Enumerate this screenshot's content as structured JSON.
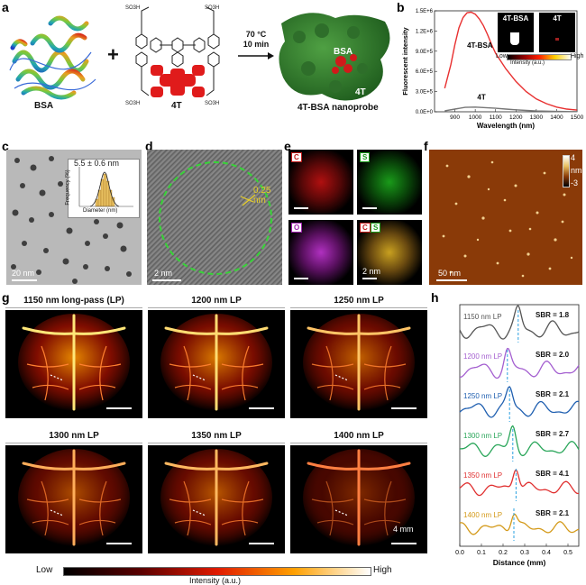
{
  "panels": {
    "a": {
      "label": "a",
      "bsa": "BSA",
      "plus": "+",
      "dye": "4T",
      "condition1": "70 °C",
      "condition2": "10 min",
      "probe": "4T-BSA nanoprobe",
      "probe_bsa": "BSA",
      "probe_4t": "4T",
      "so3h": "SO₃H",
      "colors": {
        "protein_green": "#2f7a2a",
        "dye_red": "#e01b1b"
      }
    },
    "b": {
      "label": "b",
      "ylabel": "Fluorescent intensity",
      "xlabel": "Wavelength (nm)",
      "inset_left": "4T-BSA",
      "inset_right": "4T",
      "colorbar_low": "Low",
      "colorbar_mid": "Intensity (a.u.)",
      "colorbar_high": "High"
    },
    "c": {
      "label": "c",
      "size": "5.5 ± 0.6 nm",
      "hist_x": "Diameter (nm)",
      "hist_y": "Frequency (%)",
      "scale": "20 nm"
    },
    "d": {
      "label": "d",
      "spacing": "0.25 nm",
      "scale": "2 nm"
    },
    "e": {
      "label": "e",
      "c": "C",
      "s": "S",
      "o": "O",
      "cs_c": "C",
      "cs_s": "S",
      "scale": "2 nm"
    },
    "f": {
      "label": "f",
      "scale": "50 nm",
      "cb_top": "4",
      "cb_mid": "nm",
      "cb_bot": "-3"
    },
    "g": {
      "label": "g",
      "titles": [
        "1150 nm long-pass (LP)",
        "1200 nm LP",
        "1250 nm LP",
        "1300 nm LP",
        "1350 nm LP",
        "1400 nm LP"
      ],
      "scale": "4 mm",
      "cb_low": "Low",
      "cb_mid": "Intensity (a.u.)",
      "cb_high": "High"
    },
    "h": {
      "label": "h",
      "xlabel": "Distance (mm)",
      "traces": [
        {
          "lp": "1150 nm LP",
          "sbr": "SBR = 1.8",
          "color": "#555555"
        },
        {
          "lp": "1200 nm LP",
          "sbr": "SBR = 2.0",
          "color": "#a45fd0"
        },
        {
          "lp": "1250 nm LP",
          "sbr": "SBR = 2.1",
          "color": "#1f5fb0"
        },
        {
          "lp": "1300 nm LP",
          "sbr": "SBR = 2.7",
          "color": "#2aa65a"
        },
        {
          "lp": "1350 nm LP",
          "sbr": "SBR = 4.1",
          "color": "#e03030"
        },
        {
          "lp": "1400 nm LP",
          "sbr": "SBR = 2.1",
          "color": "#d49a1a"
        }
      ],
      "xticks": [
        "0.0",
        "0.1",
        "0.2",
        "0.3",
        "0.4",
        "0.5"
      ]
    }
  },
  "chart_data": {
    "type": "line",
    "xlabel": "Wavelength (nm)",
    "ylabel": "Fluorescent intensity",
    "xlim": [
      800,
      1500
    ],
    "ylim": [
      0,
      1500000
    ],
    "xticks": [
      "900",
      "1000",
      "1100",
      "1200",
      "1300",
      "1400",
      "1500"
    ],
    "yticks": [
      "0.0E+0",
      "3.0E+5",
      "6.0E+5",
      "9.0E+5",
      "1.2E+6",
      "1.5E+6"
    ],
    "series": [
      {
        "name": "4T-BSA",
        "color": "#e83030",
        "x": [
          850,
          880,
          900,
          920,
          940,
          960,
          980,
          1000,
          1020,
          1040,
          1060,
          1080,
          1100,
          1150,
          1200,
          1250,
          1300,
          1350,
          1400,
          1450,
          1500
        ],
        "y": [
          350000,
          700000,
          1000000,
          1250000,
          1400000,
          1470000,
          1480000,
          1450000,
          1380000,
          1280000,
          1150000,
          1000000,
          870000,
          640000,
          450000,
          300000,
          190000,
          120000,
          70000,
          40000,
          25000
        ]
      },
      {
        "name": "4T",
        "color": "#777777",
        "x": [
          850,
          900,
          950,
          1000,
          1050,
          1100,
          1150,
          1200,
          1250,
          1300,
          1400,
          1500
        ],
        "y": [
          15000,
          40000,
          65000,
          70000,
          62000,
          52000,
          40000,
          30000,
          20000,
          12000,
          6000,
          3000
        ]
      }
    ]
  }
}
